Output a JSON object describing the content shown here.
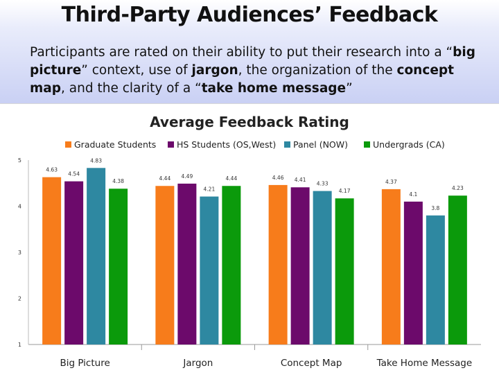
{
  "slide": {
    "title": "Third-Party Audiences’ Feedback",
    "description": [
      {
        "text": "Participants are rated on their ability to put their research into a “",
        "bold": false
      },
      {
        "text": "big picture",
        "bold": true
      },
      {
        "text": "” context, use of ",
        "bold": false
      },
      {
        "text": "jargon",
        "bold": true
      },
      {
        "text": ", the organization of the ",
        "bold": false
      },
      {
        "text": "concept map",
        "bold": true
      },
      {
        "text": ", and the clarity of a “",
        "bold": false
      },
      {
        "text": "take home message",
        "bold": true
      },
      {
        "text": "”",
        "bold": false
      }
    ]
  },
  "chart_data": {
    "type": "bar",
    "title": "Average Feedback Rating",
    "xlabel": "",
    "ylabel": "",
    "ylim": [
      1,
      5
    ],
    "yticks": [
      "1",
      "2",
      "3",
      "4",
      "5"
    ],
    "grid": false,
    "legend_position": "top",
    "categories": [
      "Big Picture",
      "Jargon",
      "Concept Map",
      "Take Home Message"
    ],
    "series": [
      {
        "name": "Graduate Students",
        "color": "#f77c1b",
        "values": [
          4.63,
          4.44,
          4.46,
          4.37
        ],
        "labels": [
          "4.63",
          "4.44",
          "4.46",
          "4.37"
        ]
      },
      {
        "name": "HS Students (OS,West)",
        "color": "#6c0a6b",
        "values": [
          4.54,
          4.49,
          4.41,
          4.1
        ],
        "labels": [
          "4.54",
          "4.49",
          "4.41",
          "4.1"
        ]
      },
      {
        "name": "Panel (NOW)",
        "color": "#2e88a1",
        "values": [
          4.83,
          4.21,
          4.33,
          3.8
        ],
        "labels": [
          "4.83",
          "4.21",
          "4.33",
          "3.8"
        ]
      },
      {
        "name": "Undergrads (CA)",
        "color": "#0b9a0b",
        "values": [
          4.38,
          4.44,
          4.17,
          4.23
        ],
        "labels": [
          "4.38",
          "4.44",
          "4.17",
          "4.23"
        ]
      }
    ]
  }
}
